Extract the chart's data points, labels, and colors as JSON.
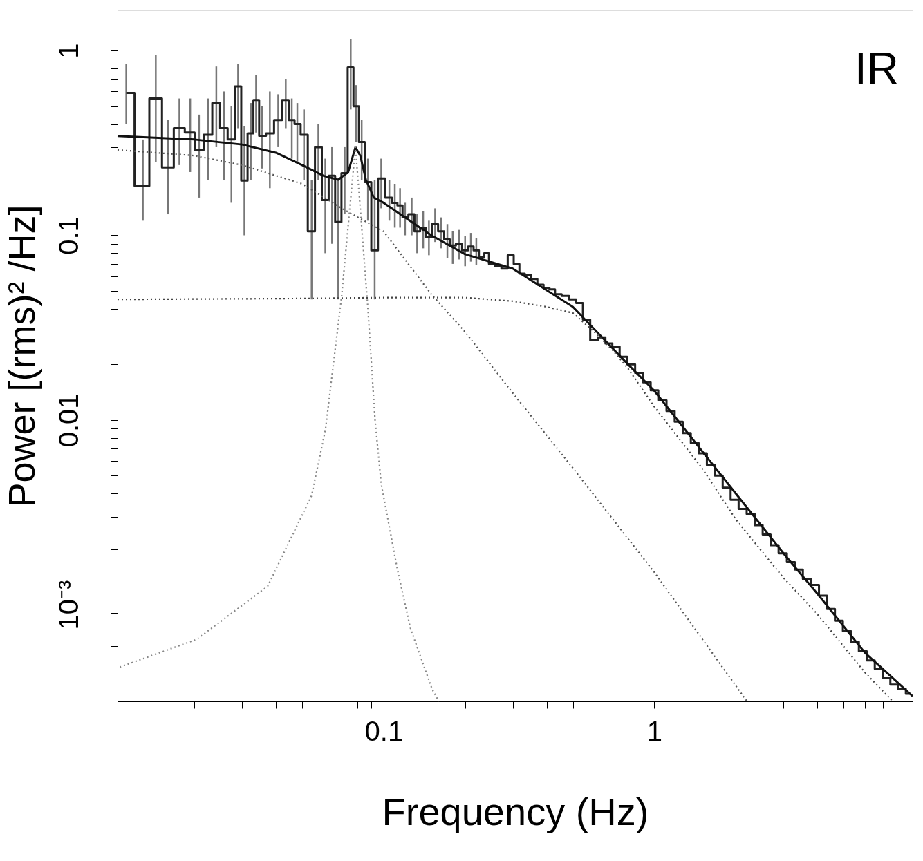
{
  "chart_data": {
    "type": "step",
    "xlabel": "Frequency (Hz)",
    "ylabel": "Power [(rms)² /Hz]",
    "annotations": [
      "IR"
    ],
    "log": "xy",
    "grid": false,
    "xlim": [
      0.0104,
      9.0
    ],
    "ylim": [
      0.0003,
      1.65
    ],
    "xticks": [
      {
        "value": 0.02,
        "label": null
      },
      {
        "value": 0.03,
        "label": null
      },
      {
        "value": 0.04,
        "label": null
      },
      {
        "value": 0.05,
        "label": null
      },
      {
        "value": 0.06,
        "label": null
      },
      {
        "value": 0.07,
        "label": null
      },
      {
        "value": 0.08,
        "label": null
      },
      {
        "value": 0.09,
        "label": null
      },
      0.1,
      {
        "value": 0.2,
        "label": null
      },
      {
        "value": 0.3,
        "label": null
      },
      {
        "value": 0.4,
        "label": null
      },
      {
        "value": 0.5,
        "label": null
      },
      {
        "value": 0.6,
        "label": null
      },
      {
        "value": 0.7,
        "label": null
      },
      {
        "value": 0.8,
        "label": null
      },
      {
        "value": 0.9,
        "label": null
      },
      1,
      {
        "value": 2,
        "label": null
      },
      {
        "value": 3,
        "label": null
      },
      {
        "value": 4,
        "label": null
      },
      {
        "value": 5,
        "label": null
      },
      {
        "value": 6,
        "label": null
      },
      {
        "value": 7,
        "label": null
      },
      {
        "value": 8,
        "label": null
      }
    ],
    "yticks": [
      {
        "value": 0.0004,
        "label": null
      },
      {
        "value": 0.0005,
        "label": null
      },
      {
        "value": 0.0006,
        "label": null
      },
      {
        "value": 0.0007,
        "label": null
      },
      {
        "value": 0.0008,
        "label": null
      },
      {
        "value": 0.0009,
        "label": null
      },
      {
        "value": 0.001,
        "label": "10⁻³"
      },
      {
        "value": 0.002,
        "label": null
      },
      {
        "value": 0.003,
        "label": null
      },
      {
        "value": 0.004,
        "label": null
      },
      {
        "value": 0.005,
        "label": null
      },
      {
        "value": 0.006,
        "label": null
      },
      {
        "value": 0.007,
        "label": null
      },
      {
        "value": 0.008,
        "label": null
      },
      {
        "value": 0.009,
        "label": null
      },
      0.01,
      {
        "value": 0.02,
        "label": null
      },
      {
        "value": 0.03,
        "label": null
      },
      {
        "value": 0.04,
        "label": null
      },
      {
        "value": 0.05,
        "label": null
      },
      {
        "value": 0.06,
        "label": null
      },
      {
        "value": 0.07,
        "label": null
      },
      {
        "value": 0.08,
        "label": null
      },
      {
        "value": 0.09,
        "label": null
      },
      0.1,
      {
        "value": 0.2,
        "label": null
      },
      {
        "value": 0.3,
        "label": null
      },
      {
        "value": 0.4,
        "label": null
      },
      {
        "value": 0.5,
        "label": null
      },
      {
        "value": 0.6,
        "label": null
      },
      {
        "value": 0.7,
        "label": null
      },
      {
        "value": 0.8,
        "label": null
      },
      {
        "value": 0.9,
        "label": null
      },
      1
    ],
    "series": [
      {
        "color": "#222222",
        "line_style": "solid",
        "marker": "none",
        "x": [
          0.0112,
          0.0129,
          0.0144,
          0.016,
          0.0176,
          0.0193,
          0.0208,
          0.0225,
          0.0241,
          0.0257,
          0.0274,
          0.029,
          0.0306,
          0.0323,
          0.0338,
          0.0356,
          0.038,
          0.0408,
          0.0435,
          0.0458,
          0.048,
          0.0508,
          0.0542,
          0.0574,
          0.0609,
          0.0645,
          0.068,
          0.0718,
          0.0756,
          0.0792,
          0.083,
          0.0875,
          0.0927,
          0.098,
          0.105,
          0.11,
          0.115,
          0.12,
          0.127,
          0.133,
          0.14,
          0.147,
          0.155,
          0.163,
          0.172,
          0.18,
          0.19,
          0.2,
          0.21,
          0.22,
          0.23,
          0.24,
          0.25,
          0.265,
          0.28,
          0.295,
          0.31,
          0.325,
          0.34,
          0.36,
          0.38,
          0.4,
          0.42,
          0.44,
          0.47,
          0.5,
          0.53,
          0.56,
          0.6,
          0.64,
          0.68,
          0.72,
          0.77,
          0.82,
          0.88,
          0.94,
          1.0,
          1.07,
          1.15,
          1.23,
          1.32,
          1.41,
          1.51,
          1.62,
          1.73,
          1.85,
          1.98,
          2.12,
          2.27,
          2.43,
          2.6,
          2.78,
          2.98,
          3.2,
          3.42,
          3.66,
          3.92,
          4.2,
          4.5,
          4.8,
          5.15,
          5.5,
          5.9,
          6.3,
          6.75,
          7.2,
          7.7,
          8.2,
          8.8
        ],
        "values": [
          0.59,
          0.185,
          0.55,
          0.233,
          0.38,
          0.36,
          0.29,
          0.35,
          0.52,
          0.38,
          0.33,
          0.64,
          0.198,
          0.356,
          0.54,
          0.346,
          0.356,
          0.42,
          0.54,
          0.42,
          0.4,
          0.35,
          0.105,
          0.3,
          0.155,
          0.21,
          0.118,
          0.217,
          0.81,
          0.5,
          0.32,
          0.194,
          0.083,
          0.203,
          0.16,
          0.15,
          0.145,
          0.125,
          0.13,
          0.105,
          0.11,
          0.098,
          0.115,
          0.105,
          0.095,
          0.088,
          0.09,
          0.083,
          0.087,
          0.083,
          0.076,
          0.08,
          0.07,
          0.068,
          0.066,
          0.078,
          0.07,
          0.062,
          0.061,
          0.058,
          0.054,
          0.052,
          0.051,
          0.048,
          0.047,
          0.045,
          0.043,
          0.035,
          0.027,
          0.028,
          0.026,
          0.025,
          0.022,
          0.02,
          0.018,
          0.016,
          0.0145,
          0.0128,
          0.0112,
          0.0098,
          0.0085,
          0.0075,
          0.0066,
          0.0057,
          0.005,
          0.0043,
          0.0037,
          0.0033,
          0.0031,
          0.0027,
          0.0024,
          0.0021,
          0.0019,
          0.0017,
          0.00155,
          0.00138,
          0.00128,
          0.00112,
          0.00095,
          0.00082,
          0.00072,
          0.00063,
          0.00056,
          0.0005,
          0.00045,
          0.0004,
          0.00037,
          0.00035,
          0.00033
        ],
        "errors": [
          [
            0.4,
            0.85
          ],
          [
            0.12,
            0.33
          ],
          [
            0.25,
            0.95
          ],
          [
            0.13,
            0.42
          ],
          [
            0.24,
            0.55
          ],
          [
            0.22,
            0.55
          ],
          [
            0.16,
            0.45
          ],
          [
            0.2,
            0.55
          ],
          [
            0.3,
            0.82
          ],
          [
            0.2,
            0.6
          ],
          [
            0.15,
            0.5
          ],
          [
            0.38,
            0.85
          ],
          [
            0.1,
            0.39
          ],
          [
            0.2,
            0.52
          ],
          [
            0.36,
            0.74
          ],
          [
            0.23,
            0.5
          ],
          [
            0.18,
            0.6
          ],
          [
            0.3,
            0.58
          ],
          [
            0.38,
            0.7
          ],
          [
            0.26,
            0.55
          ],
          [
            0.25,
            0.52
          ],
          [
            0.2,
            0.48
          ],
          [
            0.045,
            0.2
          ],
          [
            0.2,
            0.4
          ],
          [
            0.08,
            0.26
          ],
          [
            0.09,
            0.3
          ],
          [
            0.045,
            0.2
          ],
          [
            0.13,
            0.3
          ],
          [
            0.48,
            1.15
          ],
          [
            0.32,
            0.65
          ],
          [
            0.2,
            0.42
          ],
          [
            0.12,
            0.26
          ],
          [
            0.045,
            0.2
          ],
          [
            0.14,
            0.26
          ],
          [
            0.12,
            0.2
          ],
          [
            0.11,
            0.19
          ],
          [
            0.11,
            0.18
          ],
          [
            0.1,
            0.15
          ],
          [
            0.1,
            0.16
          ],
          [
            0.08,
            0.13
          ],
          [
            0.085,
            0.135
          ],
          [
            0.078,
            0.12
          ],
          [
            0.092,
            0.14
          ],
          [
            0.085,
            0.125
          ],
          [
            0.075,
            0.115
          ],
          [
            0.07,
            0.105
          ],
          [
            0.074,
            0.107
          ],
          [
            0.068,
            0.099
          ],
          [
            0.072,
            0.103
          ],
          [
            0.069,
            0.097
          ],
          null,
          null,
          null,
          null,
          null,
          null,
          null,
          null,
          null,
          null,
          null,
          null,
          null,
          null,
          null,
          null,
          null,
          null,
          null,
          null,
          null,
          null,
          null,
          null,
          null,
          null,
          null,
          null,
          null,
          null,
          null,
          null,
          null,
          null,
          null,
          null,
          null,
          null,
          null,
          null,
          null,
          null,
          null,
          null,
          null,
          null,
          null,
          null,
          null,
          null,
          null,
          null,
          null,
          null,
          null,
          null,
          null,
          null,
          null
        ]
      },
      {
        "type": "line",
        "color": "#111111",
        "line_style": "solid",
        "marker": "none",
        "x": [
          0.0104,
          0.02,
          0.03,
          0.04,
          0.05,
          0.06,
          0.068,
          0.074,
          0.0787,
          0.082,
          0.086,
          0.092,
          0.1,
          0.15,
          0.2,
          0.3,
          0.5,
          0.8,
          1,
          1.5,
          2,
          3,
          4,
          6,
          9
        ],
        "values": [
          0.345,
          0.33,
          0.31,
          0.28,
          0.24,
          0.21,
          0.2,
          0.22,
          0.3,
          0.27,
          0.2,
          0.16,
          0.15,
          0.1,
          0.079,
          0.066,
          0.041,
          0.02,
          0.0144,
          0.0068,
          0.004,
          0.0019,
          0.00115,
          0.00055,
          0.00032
        ]
      },
      {
        "type": "line",
        "color": "#555555",
        "line_style": "dotted",
        "marker": "none",
        "x": [
          0.0104,
          0.02,
          0.03,
          0.05,
          0.07,
          0.1,
          0.15,
          0.2,
          0.3,
          0.5,
          1,
          2.2
        ],
        "values": [
          0.29,
          0.27,
          0.24,
          0.19,
          0.14,
          0.105,
          0.048,
          0.03,
          0.014,
          0.0055,
          0.0015,
          0.0003
        ]
      },
      {
        "type": "line",
        "color": "#888888",
        "line_style": "dotted",
        "marker": "none",
        "x": [
          0.0106,
          0.0204,
          0.0373,
          0.0542,
          0.061,
          0.07,
          0.075,
          0.0787,
          0.082,
          0.0875,
          0.093,
          0.098,
          0.112,
          0.1255,
          0.151,
          0.16
        ],
        "values": [
          0.00046,
          0.00065,
          0.00126,
          0.0039,
          0.0089,
          0.047,
          0.14,
          0.3,
          0.14,
          0.04,
          0.01,
          0.0045,
          0.0016,
          0.00075,
          0.00035,
          0.0003
        ]
      },
      {
        "type": "line",
        "color": "#444444",
        "line_style": "dotted",
        "marker": "none",
        "x": [
          0.0104,
          0.05,
          0.1,
          0.2,
          0.3,
          0.4,
          0.5,
          0.6,
          0.7,
          0.8,
          1,
          1.5,
          2,
          3,
          4,
          6,
          7.6
        ],
        "values": [
          0.045,
          0.0455,
          0.046,
          0.046,
          0.044,
          0.041,
          0.038,
          0.03,
          0.024,
          0.019,
          0.0118,
          0.0055,
          0.0029,
          0.0014,
          0.00089,
          0.00043,
          0.0003
        ]
      }
    ]
  }
}
